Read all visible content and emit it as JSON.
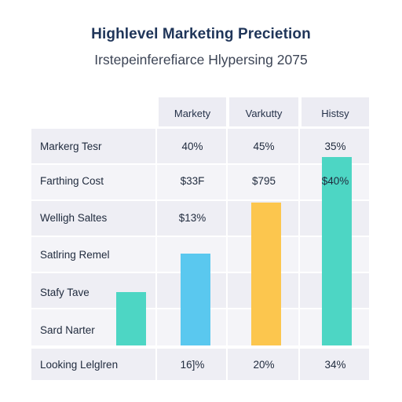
{
  "title": "Highlevel Marketing Precietion",
  "subtitle": "Irstepeinferefiarce Hlypersing 2075",
  "columns": [
    "Markety",
    "Varkutty",
    "Histsy"
  ],
  "rows": [
    {
      "label": "Markerg Tesr",
      "values": [
        "40%",
        "45%",
        "35%"
      ]
    },
    {
      "label": "Farthing Cost",
      "values": [
        "$33F",
        "$795",
        "$40%"
      ]
    },
    {
      "label": "Welligh Saltes",
      "values": [
        "$13%",
        "",
        ""
      ]
    },
    {
      "label": "Satlring Remel",
      "values": [
        "",
        "",
        ""
      ]
    },
    {
      "label": "Stafy Tave",
      "values": [
        "",
        "",
        ""
      ]
    },
    {
      "label": "Sard Narter",
      "values": [
        "",
        "",
        ""
      ]
    },
    {
      "label": "Looking Lelglren",
      "values": [
        "16]%",
        "20%",
        "34%"
      ]
    }
  ],
  "chart_data": {
    "type": "bar",
    "series": [
      {
        "values": [
          0.22
        ]
      },
      {
        "values": [
          0.38
        ]
      },
      {
        "values": [
          0.59
        ]
      },
      {
        "values": [
          0.78
        ]
      }
    ],
    "colors": [
      "#4dd6c4",
      "#5ac8ef",
      "#fcc64e",
      "#4dd6c4"
    ]
  }
}
